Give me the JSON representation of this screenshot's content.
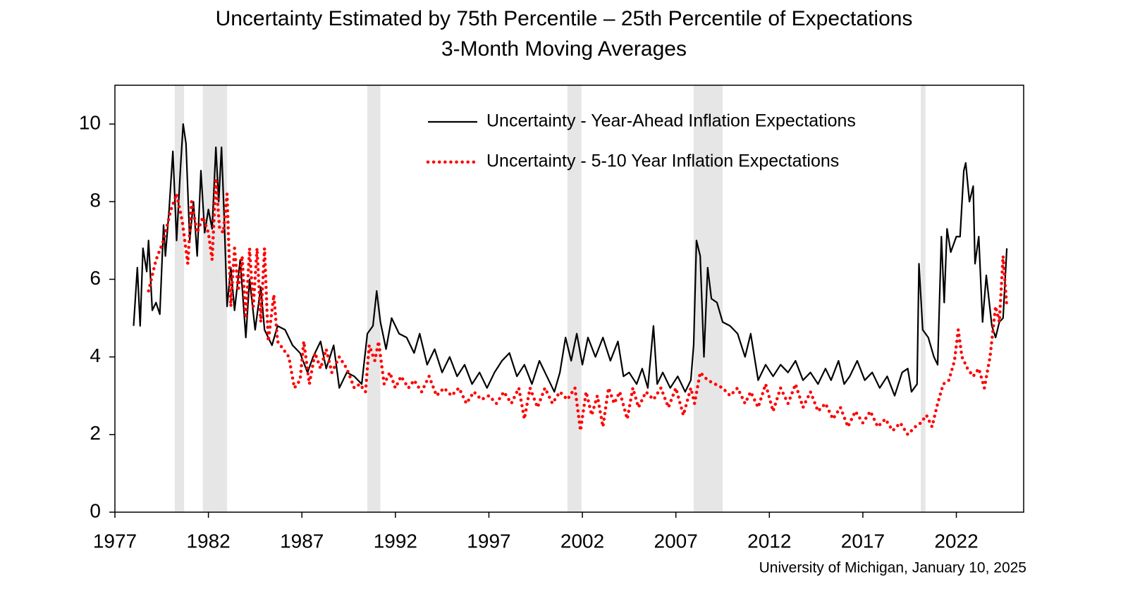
{
  "chart_data": {
    "type": "line",
    "title": "Uncertainty Estimated by 75th Percentile – 25th Percentile of Expectations",
    "subtitle": "3-Month Moving Averages",
    "source": "University of Michigan, January 10, 2025",
    "xlim": [
      1977,
      2025.6
    ],
    "xticks": [
      1977,
      1982,
      1987,
      1992,
      1997,
      2002,
      2007,
      2012,
      2017,
      2022
    ],
    "ylim": [
      0,
      11
    ],
    "yticks": [
      0,
      2,
      4,
      6,
      8,
      10
    ],
    "recessions": [
      [
        1980.2,
        1980.7
      ],
      [
        1981.7,
        1983.0
      ],
      [
        1990.5,
        1991.2
      ],
      [
        2001.2,
        2001.95
      ],
      [
        2007.95,
        2009.5
      ],
      [
        2020.1,
        2020.35
      ]
    ],
    "recession_color": "#e6e6e6",
    "legend": "top-right",
    "series": [
      {
        "name": "Uncertainty - Year-Ahead Inflation Expectations",
        "color": "#000000",
        "style": "solid",
        "x": [
          1978.0,
          1978.2,
          1978.35,
          1978.5,
          1978.7,
          1978.8,
          1979.0,
          1979.2,
          1979.4,
          1979.6,
          1979.7,
          1979.9,
          1980.1,
          1980.3,
          1980.5,
          1980.65,
          1980.8,
          1981.0,
          1981.2,
          1981.4,
          1981.6,
          1981.8,
          1982.0,
          1982.2,
          1982.4,
          1982.55,
          1982.7,
          1982.85,
          1983.0,
          1983.2,
          1983.4,
          1983.7,
          1984.0,
          1984.2,
          1984.5,
          1984.8,
          1985.0,
          1985.4,
          1985.7,
          1986.1,
          1986.5,
          1986.9,
          1987.3,
          1987.6,
          1988.0,
          1988.3,
          1988.7,
          1989.0,
          1989.4,
          1989.8,
          1990.2,
          1990.5,
          1990.8,
          1991.0,
          1991.2,
          1991.5,
          1991.8,
          1992.2,
          1992.6,
          1993.0,
          1993.3,
          1993.7,
          1994.1,
          1994.5,
          1994.9,
          1995.3,
          1995.7,
          1996.1,
          1996.5,
          1996.9,
          1997.3,
          1997.7,
          1998.1,
          1998.5,
          1998.9,
          1999.3,
          1999.7,
          2000.1,
          2000.5,
          2000.8,
          2001.1,
          2001.4,
          2001.7,
          2002.0,
          2002.3,
          2002.7,
          2003.1,
          2003.5,
          2003.9,
          2004.2,
          2004.5,
          2004.9,
          2005.2,
          2005.5,
          2005.8,
          2006.0,
          2006.3,
          2006.7,
          2007.1,
          2007.5,
          2007.8,
          2007.95,
          2008.1,
          2008.3,
          2008.5,
          2008.7,
          2008.9,
          2009.2,
          2009.5,
          2009.9,
          2010.3,
          2010.7,
          2011.0,
          2011.4,
          2011.8,
          2012.2,
          2012.6,
          2013.0,
          2013.4,
          2013.8,
          2014.2,
          2014.6,
          2015.0,
          2015.3,
          2015.7,
          2016.0,
          2016.3,
          2016.7,
          2017.1,
          2017.5,
          2017.9,
          2018.3,
          2018.7,
          2019.1,
          2019.4,
          2019.6,
          2019.9,
          2020.0,
          2020.2,
          2020.5,
          2020.8,
          2021.0,
          2021.2,
          2021.35,
          2021.5,
          2021.7,
          2022.0,
          2022.2,
          2022.4,
          2022.5,
          2022.7,
          2022.9,
          2023.0,
          2023.2,
          2023.4,
          2023.6,
          2023.9,
          2024.1,
          2024.3,
          2024.5,
          2024.7
        ],
        "values": [
          4.8,
          6.3,
          4.8,
          6.8,
          6.2,
          7.0,
          5.2,
          5.4,
          5.1,
          7.4,
          6.6,
          7.8,
          9.3,
          7.0,
          8.8,
          10.0,
          9.5,
          7.0,
          8.0,
          6.6,
          8.8,
          7.2,
          7.8,
          7.3,
          9.4,
          8.0,
          9.4,
          7.5,
          5.3,
          6.3,
          5.2,
          6.5,
          4.5,
          6.0,
          4.7,
          5.8,
          4.7,
          4.3,
          4.8,
          4.7,
          4.3,
          4.1,
          3.6,
          4.0,
          4.4,
          3.7,
          4.3,
          3.2,
          3.6,
          3.5,
          3.3,
          4.6,
          4.8,
          5.7,
          4.9,
          4.2,
          5.0,
          4.6,
          4.5,
          4.1,
          4.6,
          3.8,
          4.2,
          3.6,
          4.0,
          3.5,
          3.8,
          3.3,
          3.6,
          3.2,
          3.6,
          3.9,
          4.1,
          3.5,
          3.8,
          3.3,
          3.9,
          3.5,
          3.1,
          3.6,
          4.5,
          3.9,
          4.6,
          3.8,
          4.5,
          4.0,
          4.5,
          3.9,
          4.4,
          3.5,
          3.6,
          3.3,
          3.7,
          3.2,
          4.8,
          3.3,
          3.6,
          3.2,
          3.5,
          3.1,
          3.4,
          4.3,
          7.0,
          6.6,
          4.0,
          6.3,
          5.5,
          5.4,
          4.9,
          4.8,
          4.6,
          4.0,
          4.6,
          3.4,
          3.8,
          3.5,
          3.8,
          3.6,
          3.9,
          3.4,
          3.6,
          3.3,
          3.7,
          3.4,
          3.9,
          3.3,
          3.5,
          3.9,
          3.4,
          3.6,
          3.2,
          3.5,
          3.0,
          3.6,
          3.7,
          3.1,
          3.3,
          6.4,
          4.7,
          4.5,
          4.0,
          3.8,
          7.1,
          5.4,
          7.3,
          6.7,
          7.1,
          7.1,
          8.8,
          9.0,
          8.0,
          8.4,
          6.4,
          7.1,
          4.9,
          6.1,
          4.8,
          4.5,
          4.9,
          5.0,
          6.8
        ]
      },
      {
        "name": "Uncertainty - 5-10 Year Inflation Expectations",
        "color": "#ff0000",
        "style": "dotted",
        "x": [
          1978.8,
          1979.2,
          1979.6,
          1980.0,
          1980.3,
          1980.6,
          1980.9,
          1981.1,
          1981.4,
          1981.7,
          1982.0,
          1982.2,
          1982.4,
          1982.6,
          1982.8,
          1983.0,
          1983.2,
          1983.4,
          1983.6,
          1983.8,
          1984.0,
          1984.2,
          1984.4,
          1984.6,
          1984.8,
          1985.0,
          1985.2,
          1985.5,
          1985.7,
          1986.0,
          1986.3,
          1986.6,
          1986.9,
          1987.1,
          1987.4,
          1987.7,
          1988.0,
          1988.3,
          1988.6,
          1989.0,
          1989.4,
          1989.8,
          1990.1,
          1990.4,
          1990.6,
          1990.9,
          1991.1,
          1991.4,
          1991.7,
          1992.0,
          1992.3,
          1992.7,
          1993.0,
          1993.4,
          1993.8,
          1994.2,
          1994.6,
          1995.0,
          1995.4,
          1995.8,
          1996.2,
          1996.6,
          1997.0,
          1997.4,
          1997.8,
          1998.2,
          1998.6,
          1998.9,
          1999.2,
          1999.6,
          2000.0,
          2000.4,
          2000.8,
          2001.2,
          2001.6,
          2001.9,
          2002.2,
          2002.5,
          2002.8,
          2003.1,
          2003.4,
          2003.7,
          2004.0,
          2004.4,
          2004.7,
          2005.0,
          2005.4,
          2005.8,
          2006.2,
          2006.6,
          2007.0,
          2007.4,
          2007.8,
          2008.0,
          2008.3,
          2008.7,
          2009.1,
          2009.5,
          2009.9,
          2010.3,
          2010.7,
          2011.0,
          2011.4,
          2011.8,
          2012.2,
          2012.6,
          2013.0,
          2013.4,
          2013.8,
          2014.2,
          2014.6,
          2015.0,
          2015.4,
          2015.8,
          2016.2,
          2016.6,
          2017.0,
          2017.4,
          2017.8,
          2018.2,
          2018.6,
          2019.0,
          2019.4,
          2019.8,
          2020.1,
          2020.4,
          2020.7,
          2021.0,
          2021.3,
          2021.6,
          2021.9,
          2022.1,
          2022.3,
          2022.6,
          2022.9,
          2023.2,
          2023.5,
          2023.8,
          2024.1,
          2024.3,
          2024.5,
          2024.7
        ],
        "values": [
          5.7,
          6.5,
          7.0,
          7.8,
          8.2,
          7.5,
          6.4,
          8.0,
          7.2,
          7.6,
          7.2,
          6.5,
          8.6,
          7.3,
          7.2,
          8.2,
          5.3,
          6.8,
          5.7,
          6.6,
          5.0,
          6.8,
          5.3,
          6.8,
          4.9,
          6.8,
          4.4,
          5.6,
          4.4,
          4.2,
          4.0,
          3.2,
          3.4,
          4.4,
          3.3,
          4.1,
          3.7,
          4.2,
          3.6,
          4.0,
          3.7,
          3.2,
          3.3,
          3.1,
          4.3,
          3.9,
          4.4,
          3.3,
          3.6,
          3.2,
          3.5,
          3.2,
          3.4,
          3.1,
          3.5,
          3.0,
          3.2,
          3.0,
          3.2,
          2.8,
          3.1,
          2.9,
          3.0,
          2.8,
          3.1,
          2.8,
          3.2,
          2.4,
          3.2,
          2.7,
          3.2,
          2.8,
          3.1,
          2.9,
          3.2,
          2.1,
          3.1,
          2.5,
          3.0,
          2.2,
          3.2,
          2.8,
          3.1,
          2.4,
          3.2,
          2.7,
          3.1,
          2.9,
          3.2,
          2.7,
          3.2,
          2.5,
          3.2,
          2.8,
          3.6,
          3.4,
          3.3,
          3.2,
          3.0,
          3.2,
          2.8,
          3.1,
          2.7,
          3.3,
          2.6,
          3.2,
          2.8,
          3.3,
          2.7,
          3.1,
          2.6,
          2.8,
          2.4,
          2.7,
          2.2,
          2.6,
          2.3,
          2.6,
          2.2,
          2.4,
          2.1,
          2.3,
          2.0,
          2.2,
          2.3,
          2.5,
          2.2,
          2.8,
          3.3,
          3.4,
          3.9,
          4.7,
          4.0,
          3.7,
          3.5,
          3.7,
          3.2,
          4.0,
          5.3,
          4.9,
          6.6,
          5.3
        ]
      }
    ]
  }
}
